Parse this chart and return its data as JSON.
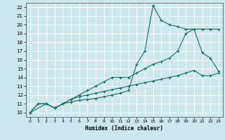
{
  "xlabel": "Humidex (Indice chaleur)",
  "bg_color": "#cce8ec",
  "grid_color": "#ffffff",
  "line_color": "#1a6b6b",
  "xlim": [
    -0.5,
    23.5
  ],
  "ylim": [
    9.5,
    22.5
  ],
  "xticks": [
    0,
    1,
    2,
    3,
    4,
    5,
    6,
    7,
    8,
    9,
    10,
    11,
    12,
    13,
    14,
    15,
    16,
    17,
    18,
    19,
    20,
    21,
    22,
    23
  ],
  "yticks": [
    10,
    11,
    12,
    13,
    14,
    15,
    16,
    17,
    18,
    19,
    20,
    21,
    22
  ],
  "line1_x": [
    0,
    1,
    2,
    3,
    4,
    5,
    6,
    7,
    8,
    9,
    10,
    11,
    12,
    13,
    14,
    15,
    16,
    17,
    18,
    19,
    20,
    21,
    22,
    23
  ],
  "line1_y": [
    10.0,
    11.0,
    11.0,
    10.5,
    11.0,
    11.2,
    11.4,
    11.5,
    11.6,
    11.8,
    12.0,
    12.2,
    12.5,
    15.5,
    17.0,
    22.2,
    20.5,
    20.0,
    19.8,
    19.5,
    19.5,
    19.5,
    19.5,
    19.5
  ],
  "line2_x": [
    0,
    1,
    2,
    3,
    4,
    5,
    6,
    7,
    8,
    9,
    10,
    11,
    12,
    13,
    14,
    15,
    16,
    17,
    18,
    19,
    20,
    21,
    22,
    23
  ],
  "line2_y": [
    10.0,
    11.0,
    11.0,
    10.5,
    11.0,
    11.5,
    12.0,
    12.5,
    13.0,
    13.5,
    14.0,
    14.0,
    14.0,
    14.5,
    15.0,
    15.5,
    15.8,
    16.2,
    17.0,
    19.0,
    19.5,
    16.8,
    16.2,
    14.7
  ],
  "line3_x": [
    0,
    2,
    3,
    4,
    5,
    6,
    7,
    8,
    9,
    10,
    11,
    12,
    13,
    14,
    15,
    16,
    17,
    18,
    19,
    20,
    21,
    22,
    23
  ],
  "line3_y": [
    10.0,
    11.0,
    10.5,
    11.0,
    11.5,
    11.8,
    12.0,
    12.2,
    12.4,
    12.6,
    12.8,
    13.0,
    13.2,
    13.4,
    13.6,
    13.8,
    14.0,
    14.2,
    14.5,
    14.8,
    14.2,
    14.2,
    14.5
  ]
}
